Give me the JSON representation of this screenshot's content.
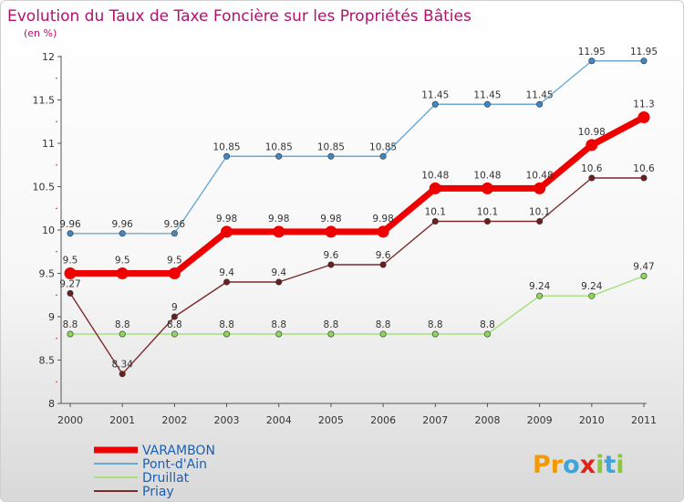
{
  "chart_data": {
    "type": "line",
    "title": "Evolution du Taux de Taxe Foncière sur les Propriétés Bâties",
    "subtitle": "(en %)",
    "xlabel": "",
    "ylabel": "(en %)",
    "categories": [
      "2000",
      "2001",
      "2002",
      "2003",
      "2004",
      "2005",
      "2006",
      "2007",
      "2008",
      "2009",
      "2010",
      "2011"
    ],
    "ylim": [
      8,
      12
    ],
    "yticks": [
      "8",
      "8.5",
      "9",
      "9.5",
      "10",
      "10.5",
      "11",
      "11.5",
      "12"
    ],
    "grid": false,
    "series": [
      {
        "name": "Pont-d'Ain",
        "color": "#6aa9d4",
        "marker": "#3f88c5",
        "values": [
          9.96,
          9.96,
          9.96,
          10.85,
          10.85,
          10.85,
          10.85,
          11.45,
          11.45,
          11.45,
          11.95,
          11.95
        ],
        "labels": [
          "9.96",
          "9.96",
          "9.96",
          "10.85",
          "10.85",
          "10.85",
          "10.85",
          "11.45",
          "11.45",
          "11.45",
          "11.95",
          "11.95"
        ]
      },
      {
        "name": "Druillat",
        "color": "#a6e07a",
        "marker": "#8fd65e",
        "values": [
          8.8,
          8.8,
          8.8,
          8.8,
          8.8,
          8.8,
          8.8,
          8.8,
          8.8,
          9.24,
          9.24,
          9.47
        ],
        "labels": [
          "8.8",
          "8.8",
          "8.8",
          "8.8",
          "8.8",
          "8.8",
          "8.8",
          "8.8",
          "8.8",
          "9.24",
          "9.24",
          "9.47"
        ]
      },
      {
        "name": "Priay",
        "color": "#7a2b2b",
        "marker": "#6b1f1f",
        "values": [
          9.27,
          8.34,
          9.0,
          9.4,
          9.4,
          9.6,
          9.6,
          10.1,
          10.1,
          10.1,
          10.6,
          10.6
        ],
        "labels": [
          "9.27",
          "8.34",
          "9",
          "9.4",
          "9.4",
          "9.6",
          "9.6",
          "10.1",
          "10.1",
          "10.1",
          "10.6",
          "10.6"
        ]
      },
      {
        "name": "VARAMBON",
        "color": "#ee0000",
        "marker": "#ee0000",
        "values": [
          9.5,
          9.5,
          9.5,
          9.98,
          9.98,
          9.98,
          9.98,
          10.48,
          10.48,
          10.48,
          10.98,
          11.3
        ],
        "labels": [
          "9.5",
          "9.5",
          "9.5",
          "9.98",
          "9.98",
          "9.98",
          "9.98",
          "10.48",
          "10.48",
          "10.48",
          "10.98",
          "11.3"
        ]
      }
    ],
    "legend": [
      "VARAMBON",
      "Pont-d'Ain",
      "Druillat",
      "Priay"
    ],
    "legend_position": "bottom-left"
  },
  "branding": {
    "logo_letters": [
      "P",
      "r",
      "o",
      "x",
      "i",
      "t",
      "i"
    ],
    "logo_colors": [
      "#f29a00",
      "#f29a00",
      "#3da5d9",
      "#e2231a",
      "#8cc63f",
      "#3da5d9",
      "#8cc63f"
    ]
  }
}
